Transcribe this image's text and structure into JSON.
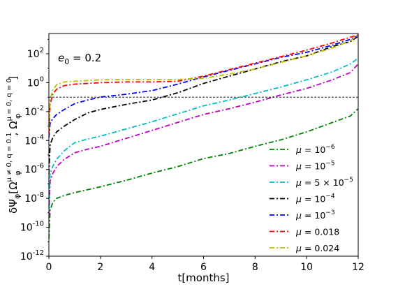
{
  "chart_data": {
    "type": "line",
    "xlabel": "t[months]",
    "ylabel": "δΨ_φ[Ω_φ^{μ≠0,q=0.1}, Ω_φ^{μ=0,q=0}]",
    "ylabel_parts": {
      "base": "δΨ",
      "sub1": "φ",
      "open": "[Ω",
      "sup1": "μ ≠ 0, q = 0.1",
      "sub2": "φ",
      "mid": ", Ω",
      "sup2": "μ = 0, q = 0",
      "sub3": "φ",
      "close": "]"
    },
    "annotation": {
      "main": "e",
      "sub": "0",
      "rest": " = 0.2"
    },
    "xlim": [
      0,
      12
    ],
    "ylim_log10": [
      -12,
      3.4
    ],
    "yscale": "log",
    "xticks": [
      0,
      2,
      4,
      6,
      8,
      10,
      12
    ],
    "xtick_labels": [
      "0",
      "2",
      "4",
      "6",
      "8",
      "10",
      "12"
    ],
    "yticks_exp": [
      -12,
      -10,
      -8,
      -6,
      -4,
      -2,
      0,
      2
    ],
    "ytick_labels": [
      "-12",
      "-10",
      "-8",
      "-6",
      "-4",
      "-2",
      "0",
      "2"
    ],
    "ytick_base": "10",
    "threshold_line": {
      "y": 0.1,
      "style": "dashed",
      "color": "#000000"
    },
    "legend": {
      "placement": "lower-right"
    },
    "series": [
      {
        "name": "μ = 10⁻⁶",
        "label": {
          "pre": "μ = 10",
          "sup": "−6"
        },
        "color": "#008000",
        "log10_points": [
          [
            0,
            -10.8
          ],
          [
            0.05,
            -8.8
          ],
          [
            0.15,
            -8.3
          ],
          [
            0.3,
            -8.0
          ],
          [
            0.6,
            -7.8
          ],
          [
            1,
            -7.6
          ],
          [
            2,
            -7.2
          ],
          [
            3,
            -6.75
          ],
          [
            4,
            -6.25
          ],
          [
            5,
            -5.8
          ],
          [
            6,
            -5.25
          ],
          [
            7,
            -4.9
          ],
          [
            8,
            -4.4
          ],
          [
            9,
            -3.95
          ],
          [
            10,
            -3.4
          ],
          [
            11,
            -2.75
          ],
          [
            11.7,
            -2.3
          ],
          [
            12,
            -1.8
          ]
        ]
      },
      {
        "name": "μ = 10⁻⁵",
        "label": {
          "pre": "μ = 10",
          "sup": "−5"
        },
        "color": "#bf00bf",
        "log10_points": [
          [
            0,
            -9.2
          ],
          [
            0.05,
            -6.8
          ],
          [
            0.15,
            -6.3
          ],
          [
            0.3,
            -5.8
          ],
          [
            0.6,
            -5.3
          ],
          [
            1,
            -4.85
          ],
          [
            1.5,
            -4.6
          ],
          [
            2,
            -4.4
          ],
          [
            3,
            -3.85
          ],
          [
            4,
            -3.3
          ],
          [
            5,
            -2.75
          ],
          [
            6,
            -2.2
          ],
          [
            7,
            -1.8
          ],
          [
            8,
            -1.35
          ],
          [
            9,
            -0.85
          ],
          [
            10,
            -0.4
          ],
          [
            11,
            0.2
          ],
          [
            11.7,
            0.7
          ],
          [
            12,
            1.3
          ]
        ]
      },
      {
        "name": "μ = 5 × 10⁻⁵",
        "label": {
          "pre": "μ = 5 × 10",
          "sup": "−5"
        },
        "color": "#00bfbf",
        "log10_points": [
          [
            0,
            -8.8
          ],
          [
            0.05,
            -6.3
          ],
          [
            0.15,
            -5.8
          ],
          [
            0.3,
            -5.3
          ],
          [
            0.6,
            -4.7
          ],
          [
            1,
            -4.15
          ],
          [
            1.5,
            -3.9
          ],
          [
            2,
            -3.7
          ],
          [
            3,
            -3.2
          ],
          [
            4,
            -2.7
          ],
          [
            5,
            -2.15
          ],
          [
            6,
            -1.6
          ],
          [
            7,
            -1.2
          ],
          [
            8,
            -0.75
          ],
          [
            9,
            -0.3
          ],
          [
            10,
            0.2
          ],
          [
            11,
            0.75
          ],
          [
            11.7,
            1.3
          ],
          [
            12,
            1.7
          ]
        ]
      },
      {
        "name": "μ = 10⁻⁴",
        "label": {
          "pre": "μ = 10",
          "sup": "−4"
        },
        "color": "#000000",
        "log10_points": [
          [
            0,
            -6.3
          ],
          [
            0.05,
            -4.3
          ],
          [
            0.15,
            -3.8
          ],
          [
            0.3,
            -3.4
          ],
          [
            0.6,
            -3.0
          ],
          [
            1,
            -2.55
          ],
          [
            1.5,
            -2.1
          ],
          [
            2,
            -1.85
          ],
          [
            3,
            -1.5
          ],
          [
            4,
            -1.2
          ],
          [
            5,
            -0.7
          ],
          [
            6,
            -0.05
          ],
          [
            7,
            0.45
          ],
          [
            8,
            0.95
          ],
          [
            9,
            1.45
          ],
          [
            10,
            1.85
          ],
          [
            11,
            2.5
          ],
          [
            11.7,
            2.85
          ],
          [
            12,
            3.2
          ]
        ]
      },
      {
        "name": "μ = 10⁻³",
        "label": {
          "pre": "μ = 10",
          "sup": "−3"
        },
        "color": "#0000ff",
        "log10_points": [
          [
            0,
            -3.8
          ],
          [
            0.05,
            -2.8
          ],
          [
            0.15,
            -2.5
          ],
          [
            0.3,
            -2.2
          ],
          [
            0.6,
            -1.85
          ],
          [
            1,
            -1.45
          ],
          [
            1.5,
            -1.2
          ],
          [
            2,
            -1.0
          ],
          [
            3,
            -0.8
          ],
          [
            4,
            -0.55
          ],
          [
            5,
            -0.1
          ],
          [
            6,
            0.4
          ],
          [
            7,
            0.85
          ],
          [
            8,
            1.3
          ],
          [
            9,
            1.75
          ],
          [
            10,
            2.1
          ],
          [
            11,
            2.6
          ],
          [
            11.7,
            3.0
          ],
          [
            12,
            3.25
          ]
        ]
      },
      {
        "name": "μ = 0.018",
        "label": {
          "pre": "μ = 0.018",
          "sup": ""
        },
        "color": "#ff0000",
        "log10_points": [
          [
            0,
            -3.5
          ],
          [
            0.05,
            -1.5
          ],
          [
            0.15,
            -0.8
          ],
          [
            0.3,
            -0.45
          ],
          [
            0.6,
            -0.2
          ],
          [
            1,
            -0.1
          ],
          [
            1.5,
            -0.05
          ],
          [
            2,
            0.0
          ],
          [
            3,
            0.05
          ],
          [
            4,
            0.05
          ],
          [
            5,
            0.1
          ],
          [
            6,
            0.45
          ],
          [
            7,
            0.9
          ],
          [
            8,
            1.35
          ],
          [
            9,
            1.8
          ],
          [
            10,
            2.25
          ],
          [
            11,
            2.75
          ],
          [
            11.7,
            3.15
          ],
          [
            12,
            3.3
          ]
        ]
      },
      {
        "name": "μ = 0.024",
        "label": {
          "pre": "μ = 0.024",
          "sup": ""
        },
        "color": "#bfbf00",
        "log10_points": [
          [
            0,
            -3.2
          ],
          [
            0.05,
            -1.2
          ],
          [
            0.15,
            -0.5
          ],
          [
            0.3,
            -0.15
          ],
          [
            0.6,
            0.05
          ],
          [
            1,
            0.1
          ],
          [
            1.5,
            0.15
          ],
          [
            2,
            0.2
          ],
          [
            3,
            0.22
          ],
          [
            4,
            0.22
          ],
          [
            5,
            0.22
          ],
          [
            6,
            0.3
          ],
          [
            7,
            0.6
          ],
          [
            8,
            0.95
          ],
          [
            9,
            1.4
          ],
          [
            10,
            1.85
          ],
          [
            11,
            2.4
          ],
          [
            11.7,
            2.9
          ],
          [
            12,
            3.3
          ]
        ]
      }
    ]
  }
}
